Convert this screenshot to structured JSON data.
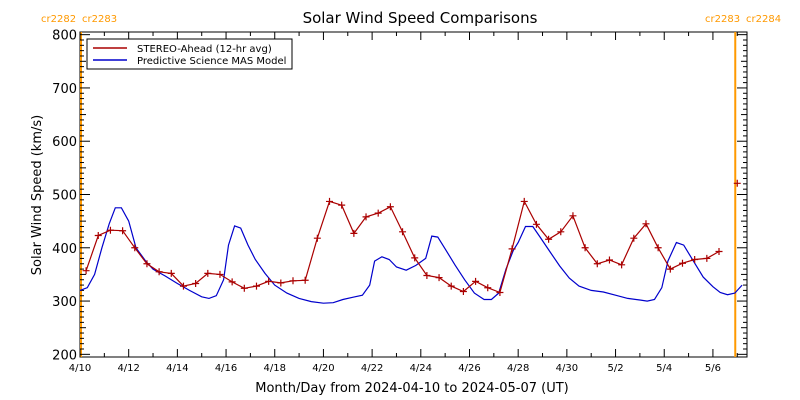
{
  "chart_data": {
    "type": "line",
    "title": "Solar Wind Speed Comparisons",
    "xlabel": "Month/Day from 2024-04-10 to 2024-05-07 (UT)",
    "ylabel": "Solar Wind Speed (km/s)",
    "xlim": [
      0,
      27.4
    ],
    "ylim": [
      195,
      805
    ],
    "x_unit": "days since 2024-04-10 00:00 UT",
    "x_ticks": [
      {
        "x": 0,
        "label": "4/10"
      },
      {
        "x": 2,
        "label": "4/12"
      },
      {
        "x": 4,
        "label": "4/14"
      },
      {
        "x": 6,
        "label": "4/16"
      },
      {
        "x": 8,
        "label": "4/18"
      },
      {
        "x": 10,
        "label": "4/20"
      },
      {
        "x": 12,
        "label": "4/22"
      },
      {
        "x": 14,
        "label": "4/24"
      },
      {
        "x": 16,
        "label": "4/26"
      },
      {
        "x": 18,
        "label": "4/28"
      },
      {
        "x": 20,
        "label": "4/30"
      },
      {
        "x": 22,
        "label": "5/2"
      },
      {
        "x": 24,
        "label": "5/4"
      },
      {
        "x": 26,
        "label": "5/6"
      }
    ],
    "y_ticks": [
      200,
      300,
      400,
      500,
      600,
      700,
      800
    ],
    "grid": false,
    "legend_position": "top-left",
    "carrington_markers": [
      {
        "x": 0.0,
        "label_left": "cr2282",
        "label_right": "cr2283",
        "label_side": "left"
      },
      {
        "x": 27.0,
        "label_left": "cr2283",
        "label_right": "cr2284",
        "label_side": "right"
      }
    ],
    "series": [
      {
        "name": "STEREO-Ahead (12-hr avg)",
        "color": "#aa0000",
        "marker": "+",
        "points": [
          [
            0.25,
            357
          ],
          [
            0.75,
            423
          ],
          [
            1.25,
            433
          ],
          [
            1.75,
            432
          ],
          [
            2.25,
            400
          ],
          [
            2.75,
            370
          ],
          [
            3.25,
            355
          ],
          [
            3.75,
            352
          ],
          [
            4.25,
            328
          ],
          [
            4.75,
            333
          ],
          [
            5.25,
            352
          ],
          [
            5.75,
            350
          ],
          [
            6.25,
            336
          ],
          [
            6.75,
            324
          ],
          [
            7.25,
            328
          ],
          [
            7.75,
            337
          ],
          [
            8.25,
            334
          ],
          [
            8.75,
            338
          ],
          [
            9.25,
            339
          ],
          [
            9.75,
            418
          ],
          [
            10.25,
            487
          ],
          [
            10.75,
            480
          ],
          [
            11.25,
            427
          ],
          [
            11.75,
            458
          ],
          [
            12.25,
            465
          ],
          [
            12.75,
            477
          ],
          [
            13.25,
            430
          ],
          [
            13.75,
            381
          ],
          [
            14.25,
            348
          ],
          [
            14.75,
            344
          ],
          [
            15.25,
            328
          ],
          [
            15.75,
            318
          ],
          [
            16.25,
            337
          ],
          [
            16.75,
            325
          ],
          [
            17.25,
            316
          ],
          [
            17.75,
            398
          ],
          [
            18.25,
            487
          ],
          [
            18.75,
            444
          ],
          [
            19.25,
            416
          ],
          [
            19.75,
            430
          ],
          [
            20.25,
            460
          ],
          [
            20.75,
            400
          ],
          [
            21.25,
            370
          ],
          [
            21.75,
            377
          ],
          [
            22.25,
            368
          ],
          [
            22.75,
            418
          ],
          [
            23.25,
            445
          ],
          [
            23.75,
            400
          ],
          [
            24.25,
            360
          ],
          [
            24.75,
            371
          ],
          [
            25.25,
            378
          ],
          [
            25.75,
            380
          ],
          [
            26.25,
            393
          ],
          [
            27.0,
            521
          ]
        ]
      },
      {
        "name": "Predictive Science MAS Model",
        "color": "#0000cc",
        "marker": "",
        "points": [
          [
            0.0,
            320
          ],
          [
            0.3,
            325
          ],
          [
            0.6,
            350
          ],
          [
            0.9,
            400
          ],
          [
            1.2,
            445
          ],
          [
            1.45,
            475
          ],
          [
            1.7,
            475
          ],
          [
            2.0,
            450
          ],
          [
            2.3,
            400
          ],
          [
            2.7,
            375
          ],
          [
            3.0,
            360
          ],
          [
            3.5,
            347
          ],
          [
            4.0,
            333
          ],
          [
            4.5,
            320
          ],
          [
            5.0,
            308
          ],
          [
            5.3,
            305
          ],
          [
            5.6,
            310
          ],
          [
            5.9,
            340
          ],
          [
            6.1,
            405
          ],
          [
            6.35,
            441
          ],
          [
            6.6,
            437
          ],
          [
            6.9,
            405
          ],
          [
            7.2,
            378
          ],
          [
            7.6,
            352
          ],
          [
            8.0,
            330
          ],
          [
            8.5,
            315
          ],
          [
            9.0,
            305
          ],
          [
            9.5,
            299
          ],
          [
            10.0,
            296
          ],
          [
            10.4,
            297
          ],
          [
            10.8,
            303
          ],
          [
            11.2,
            307
          ],
          [
            11.6,
            311
          ],
          [
            11.9,
            330
          ],
          [
            12.1,
            375
          ],
          [
            12.4,
            383
          ],
          [
            12.7,
            378
          ],
          [
            13.0,
            364
          ],
          [
            13.4,
            358
          ],
          [
            13.8,
            367
          ],
          [
            14.2,
            380
          ],
          [
            14.45,
            422
          ],
          [
            14.7,
            420
          ],
          [
            15.0,
            398
          ],
          [
            15.4,
            368
          ],
          [
            15.8,
            340
          ],
          [
            16.2,
            315
          ],
          [
            16.6,
            303
          ],
          [
            16.9,
            303
          ],
          [
            17.2,
            315
          ],
          [
            17.5,
            360
          ],
          [
            17.8,
            395
          ],
          [
            18.0,
            410
          ],
          [
            18.3,
            440
          ],
          [
            18.6,
            440
          ],
          [
            18.9,
            420
          ],
          [
            19.3,
            393
          ],
          [
            19.7,
            366
          ],
          [
            20.1,
            343
          ],
          [
            20.5,
            328
          ],
          [
            21.0,
            320
          ],
          [
            21.5,
            317
          ],
          [
            22.0,
            311
          ],
          [
            22.5,
            305
          ],
          [
            23.0,
            302
          ],
          [
            23.3,
            300
          ],
          [
            23.6,
            303
          ],
          [
            23.9,
            325
          ],
          [
            24.15,
            375
          ],
          [
            24.5,
            410
          ],
          [
            24.8,
            405
          ],
          [
            25.2,
            375
          ],
          [
            25.6,
            345
          ],
          [
            26.0,
            327
          ],
          [
            26.3,
            316
          ],
          [
            26.6,
            312
          ],
          [
            26.9,
            315
          ],
          [
            27.2,
            330
          ],
          [
            27.45,
            362
          ],
          [
            27.7,
            385
          ]
        ]
      }
    ]
  }
}
